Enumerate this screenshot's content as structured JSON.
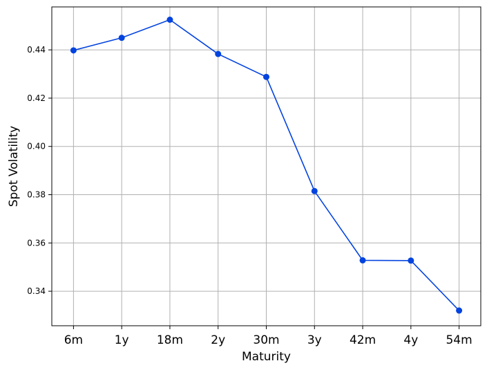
{
  "chart_data": {
    "type": "line",
    "title": "",
    "xlabel": "Maturity",
    "ylabel": "Spot Volatility",
    "categories": [
      "6m",
      "1y",
      "18m",
      "2y",
      "30m",
      "3y",
      "42m",
      "4y",
      "54m"
    ],
    "series": [
      {
        "values": [
          0.4398,
          0.445,
          0.4525,
          0.4383,
          0.4288,
          0.3815,
          0.3528,
          0.3527,
          0.332
        ],
        "color": "#0343df",
        "marker": "circle"
      }
    ],
    "ylim": [
      0.3257,
      0.4578
    ],
    "yticks": [
      0.34,
      0.36,
      0.38,
      0.4,
      0.42,
      0.44
    ],
    "ytick_labels": [
      "0.34",
      "0.36",
      "0.38",
      "0.40",
      "0.42",
      "0.44"
    ],
    "grid": true,
    "legend": "none"
  }
}
